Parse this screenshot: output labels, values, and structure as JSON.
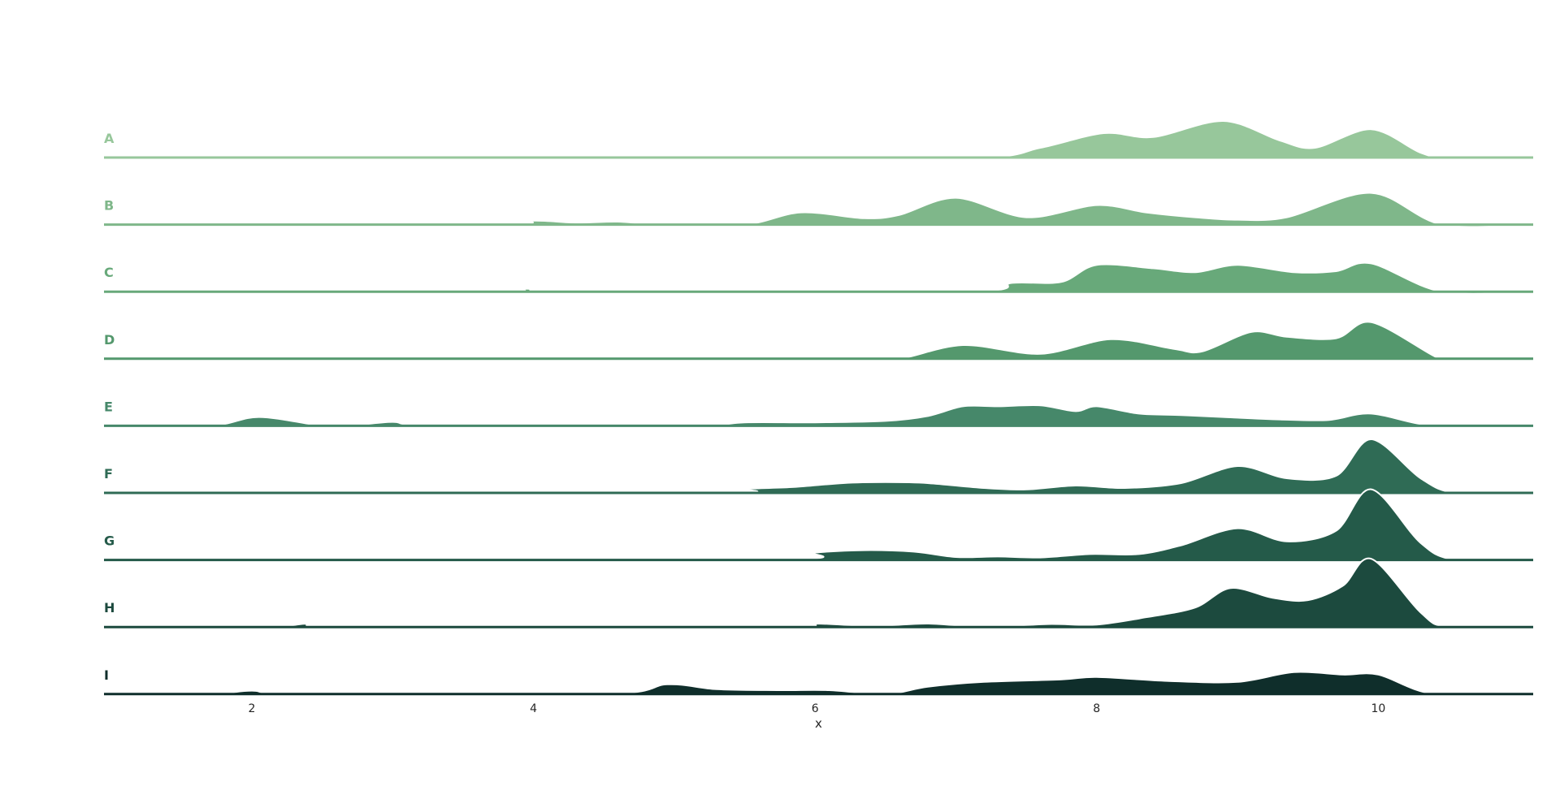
{
  "chart_data": {
    "type": "area",
    "subtype": "ridgeline",
    "xlabel": "x",
    "xlim": [
      0.95,
      11.1
    ],
    "xticks": [
      2,
      4,
      6,
      8,
      10
    ],
    "grid": false,
    "legend": "none",
    "series": [
      {
        "name": "A",
        "color": "#97c79b",
        "points": [
          [
            0.95,
            0
          ],
          [
            4.7,
            0
          ],
          [
            5.0,
            0.06
          ],
          [
            5.3,
            0
          ],
          [
            7.15,
            0
          ],
          [
            7.6,
            0.2
          ],
          [
            8.05,
            0.5
          ],
          [
            8.4,
            0.42
          ],
          [
            8.9,
            0.75
          ],
          [
            9.3,
            0.35
          ],
          [
            9.55,
            0.2
          ],
          [
            9.95,
            0.58
          ],
          [
            10.3,
            0.1
          ],
          [
            10.5,
            0
          ],
          [
            11.1,
            0
          ]
        ]
      },
      {
        "name": "B",
        "color": "#7fb78a",
        "points": [
          [
            0.95,
            0
          ],
          [
            3.7,
            0
          ],
          [
            4.0,
            0.08
          ],
          [
            4.3,
            0.04
          ],
          [
            4.6,
            0.06
          ],
          [
            4.9,
            0
          ],
          [
            5.5,
            0
          ],
          [
            5.9,
            0.25
          ],
          [
            6.35,
            0.13
          ],
          [
            6.6,
            0.2
          ],
          [
            7.0,
            0.55
          ],
          [
            7.5,
            0.15
          ],
          [
            8.0,
            0.4
          ],
          [
            8.35,
            0.25
          ],
          [
            8.7,
            0.15
          ],
          [
            9.0,
            0.1
          ],
          [
            9.35,
            0.15
          ],
          [
            9.95,
            0.65
          ],
          [
            10.45,
            0
          ],
          [
            11.1,
            0
          ]
        ]
      },
      {
        "name": "C",
        "color": "#68a97a",
        "points": [
          [
            0.95,
            0
          ],
          [
            3.65,
            0
          ],
          [
            3.95,
            0.06
          ],
          [
            4.3,
            0
          ],
          [
            7.05,
            0
          ],
          [
            7.4,
            0.18
          ],
          [
            7.75,
            0.2
          ],
          [
            8.0,
            0.55
          ],
          [
            8.4,
            0.48
          ],
          [
            8.7,
            0.4
          ],
          [
            9.0,
            0.55
          ],
          [
            9.4,
            0.4
          ],
          [
            9.7,
            0.42
          ],
          [
            9.95,
            0.58
          ],
          [
            10.45,
            0
          ],
          [
            11.1,
            0
          ]
        ]
      },
      {
        "name": "D",
        "color": "#54986d",
        "points": [
          [
            0.95,
            0
          ],
          [
            5.75,
            0
          ],
          [
            6.0,
            0.06
          ],
          [
            6.3,
            0
          ],
          [
            6.6,
            0
          ],
          [
            7.05,
            0.28
          ],
          [
            7.6,
            0.1
          ],
          [
            8.1,
            0.4
          ],
          [
            8.55,
            0.2
          ],
          [
            8.75,
            0.15
          ],
          [
            9.1,
            0.55
          ],
          [
            9.35,
            0.45
          ],
          [
            9.7,
            0.42
          ],
          [
            9.95,
            0.75
          ],
          [
            10.4,
            0.05
          ],
          [
            10.5,
            0
          ],
          [
            11.1,
            0
          ]
        ]
      },
      {
        "name": "E",
        "color": "#46886a",
        "points": [
          [
            0.95,
            0
          ],
          [
            1.7,
            0
          ],
          [
            2.05,
            0.18
          ],
          [
            2.5,
            0
          ],
          [
            2.7,
            0
          ],
          [
            3.0,
            0.08
          ],
          [
            3.3,
            0
          ],
          [
            5.1,
            0
          ],
          [
            5.5,
            0.07
          ],
          [
            6.0,
            0.07
          ],
          [
            6.5,
            0.1
          ],
          [
            6.8,
            0.2
          ],
          [
            7.05,
            0.4
          ],
          [
            7.3,
            0.4
          ],
          [
            7.6,
            0.42
          ],
          [
            7.85,
            0.3
          ],
          [
            8.0,
            0.4
          ],
          [
            8.3,
            0.25
          ],
          [
            8.6,
            0.22
          ],
          [
            8.9,
            0.18
          ],
          [
            9.3,
            0.13
          ],
          [
            9.65,
            0.12
          ],
          [
            9.95,
            0.25
          ],
          [
            10.4,
            0
          ],
          [
            11.1,
            0
          ]
        ]
      },
      {
        "name": "F",
        "color": "#2f6b55",
        "points": [
          [
            0.95,
            0
          ],
          [
            5.2,
            0
          ],
          [
            5.5,
            0.08
          ],
          [
            5.85,
            0.12
          ],
          [
            6.2,
            0.2
          ],
          [
            6.5,
            0.22
          ],
          [
            6.8,
            0.2
          ],
          [
            7.2,
            0.1
          ],
          [
            7.5,
            0.07
          ],
          [
            7.85,
            0.15
          ],
          [
            8.2,
            0.1
          ],
          [
            8.6,
            0.2
          ],
          [
            9.0,
            0.55
          ],
          [
            9.35,
            0.3
          ],
          [
            9.7,
            0.35
          ],
          [
            9.95,
            1.1
          ],
          [
            10.3,
            0.3
          ],
          [
            10.55,
            0
          ],
          [
            11.1,
            0
          ]
        ]
      },
      {
        "name": "G",
        "color": "#245a49",
        "points": [
          [
            0.95,
            0
          ],
          [
            5.6,
            0
          ],
          [
            6.0,
            0.15
          ],
          [
            6.35,
            0.2
          ],
          [
            6.7,
            0.17
          ],
          [
            7.0,
            0.06
          ],
          [
            7.3,
            0.07
          ],
          [
            7.6,
            0.05
          ],
          [
            7.95,
            0.12
          ],
          [
            8.3,
            0.12
          ],
          [
            8.6,
            0.3
          ],
          [
            9.0,
            0.65
          ],
          [
            9.35,
            0.38
          ],
          [
            9.7,
            0.6
          ],
          [
            9.95,
            1.45
          ],
          [
            10.3,
            0.35
          ],
          [
            10.55,
            0
          ],
          [
            11.1,
            0
          ]
        ]
      },
      {
        "name": "H",
        "color": "#1c4a3e",
        "points": [
          [
            0.95,
            0
          ],
          [
            2.1,
            0
          ],
          [
            2.4,
            0.07
          ],
          [
            2.7,
            0
          ],
          [
            5.7,
            0
          ],
          [
            6.0,
            0.07
          ],
          [
            6.4,
            0.02
          ],
          [
            6.8,
            0.07
          ],
          [
            7.2,
            0
          ],
          [
            7.65,
            0.06
          ],
          [
            8.0,
            0.05
          ],
          [
            8.35,
            0.2
          ],
          [
            8.7,
            0.4
          ],
          [
            8.95,
            0.8
          ],
          [
            9.25,
            0.6
          ],
          [
            9.5,
            0.55
          ],
          [
            9.75,
            0.85
          ],
          [
            9.95,
            1.4
          ],
          [
            10.3,
            0.3
          ],
          [
            10.5,
            0
          ],
          [
            11.1,
            0
          ]
        ]
      },
      {
        "name": "I",
        "color": "#0f2e2b",
        "points": [
          [
            0.95,
            0
          ],
          [
            1.7,
            0
          ],
          [
            2.0,
            0.07
          ],
          [
            2.35,
            0
          ],
          [
            4.5,
            0
          ],
          [
            4.95,
            0.2
          ],
          [
            5.3,
            0.1
          ],
          [
            5.75,
            0.08
          ],
          [
            6.1,
            0.08
          ],
          [
            6.5,
            0
          ],
          [
            6.8,
            0.15
          ],
          [
            7.2,
            0.25
          ],
          [
            7.75,
            0.3
          ],
          [
            8.0,
            0.35
          ],
          [
            8.5,
            0.27
          ],
          [
            9.0,
            0.25
          ],
          [
            9.4,
            0.45
          ],
          [
            9.75,
            0.4
          ],
          [
            10.0,
            0.4
          ],
          [
            10.4,
            0
          ],
          [
            11.1,
            0
          ]
        ]
      }
    ]
  }
}
